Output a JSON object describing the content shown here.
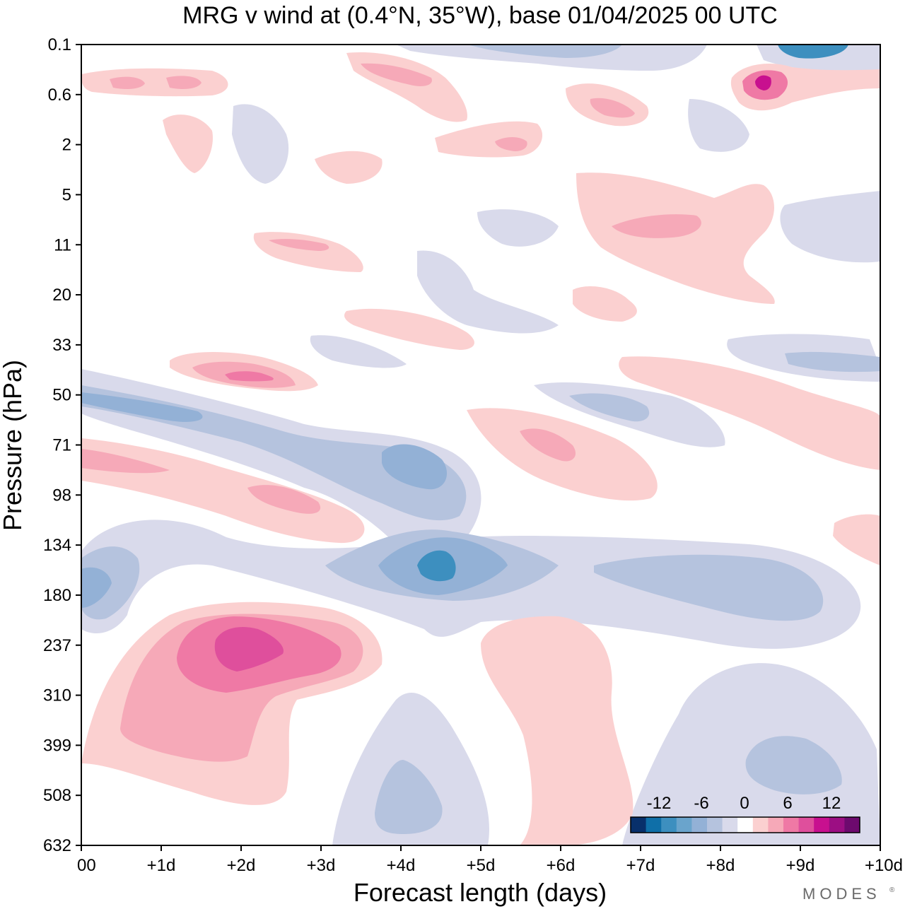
{
  "chart_data": {
    "type": "heatmap",
    "title": "MRG v wind at (0.4°N, 35°W),  base 01/04/2025  00 UTC",
    "xlabel": "Forecast length (days)",
    "ylabel": "Pressure (hPa)",
    "x_ticks": [
      "00",
      "+1d",
      "+2d",
      "+3d",
      "+4d",
      "+5d",
      "+6d",
      "+7d",
      "+8d",
      "+9d",
      "+10d"
    ],
    "xlim": [
      0,
      10
    ],
    "y_ticks": [
      "0.1",
      "0.6",
      "2",
      "5",
      "11",
      "20",
      "33",
      "50",
      "71",
      "98",
      "134",
      "180",
      "237",
      "310",
      "399",
      "508",
      "632"
    ],
    "y_axis": "pressure, inverted (top 0.1 hPa, bottom 632 hPa)",
    "colorbar": {
      "tick_labels": [
        "-12",
        "-6",
        "0",
        "6",
        "12"
      ],
      "colors": [
        "#08306b",
        "#0f6fa8",
        "#3d8fbf",
        "#6aa4cc",
        "#93b1d6",
        "#b5c3de",
        "#d9daeb",
        "#ffffff",
        "#fbd0d0",
        "#f6a9b8",
        "#ef79a5",
        "#df4f9c",
        "#c8108f",
        "#9c0e83",
        "#6d0a6e"
      ]
    },
    "features": [
      {
        "level": 3,
        "x": 2.0,
        "p": "237",
        "value": 9
      },
      {
        "level": -3,
        "x": 4.5,
        "p": "134",
        "value": -9
      },
      {
        "level": -2,
        "x": 4.3,
        "p": "71",
        "value": -6
      },
      {
        "level": -2,
        "x": 0.1,
        "p": "180",
        "value": -6
      },
      {
        "level": -2,
        "x": 1.3,
        "p": "50",
        "value": -6
      },
      {
        "level": 2,
        "x": 2.0,
        "p": "33",
        "value": 6
      },
      {
        "level": 2,
        "x": 6.0,
        "p": "71",
        "value": 6
      },
      {
        "level": 2,
        "x": 2.5,
        "p": "98",
        "value": 6
      },
      {
        "level": 3,
        "x": 8.5,
        "p": "0.6",
        "value": 9
      },
      {
        "level": -3,
        "x": 9.6,
        "p": "0.1",
        "value": -9
      },
      {
        "level": -1,
        "x": 9.3,
        "p": "399",
        "value": -4
      }
    ]
  },
  "brand": "MODES"
}
